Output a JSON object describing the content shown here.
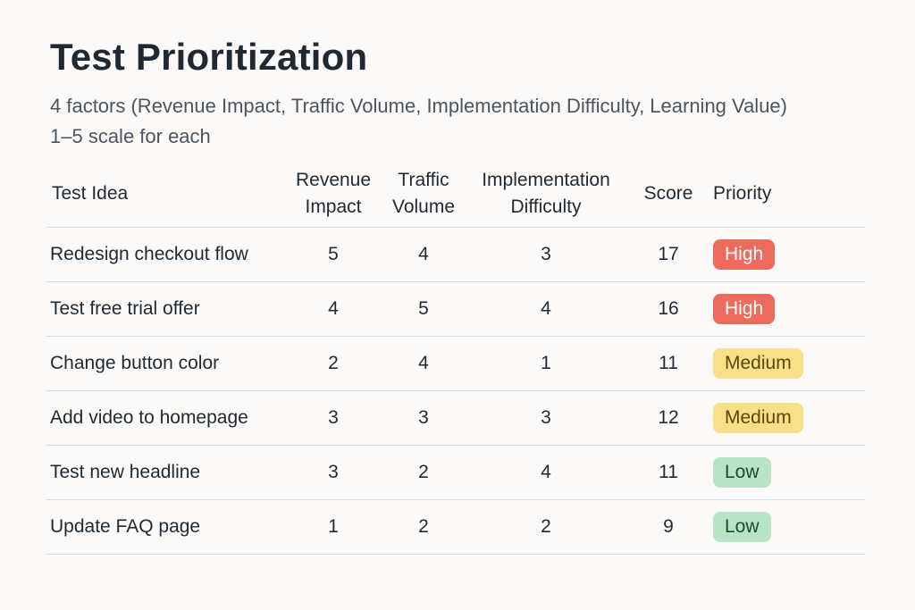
{
  "page": {
    "title": "Test Prioritization",
    "subtitle_line1": "4 factors (Revenue Impact, Traffic Volume, Implementation Difficulty, Learning Value)",
    "subtitle_line2": "1–5 scale for each"
  },
  "table": {
    "headers": {
      "test_idea": "Test Idea",
      "revenue_impact": [
        "Revenue",
        "Impact"
      ],
      "traffic_volume": [
        "Traffic",
        "Volume"
      ],
      "implementation_difficulty": [
        "Implementation",
        "Difficulty"
      ],
      "score": "Score",
      "priority": "Priority"
    },
    "rows": [
      {
        "idea": "Redesign checkout flow",
        "revenue": "5",
        "traffic": "4",
        "difficulty": "3",
        "score": "17",
        "priority": "High"
      },
      {
        "idea": "Test free trial offer",
        "revenue": "4",
        "traffic": "5",
        "difficulty": "4",
        "score": "16",
        "priority": "High"
      },
      {
        "idea": "Change button color",
        "revenue": "2",
        "traffic": "4",
        "difficulty": "1",
        "score": "11",
        "priority": "Medium"
      },
      {
        "idea": "Add video to homepage",
        "revenue": "3",
        "traffic": "3",
        "difficulty": "3",
        "score": "12",
        "priority": "Medium"
      },
      {
        "idea": "Test new headline",
        "revenue": "3",
        "traffic": "2",
        "difficulty": "4",
        "score": "11",
        "priority": "Low"
      },
      {
        "idea": "Update FAQ page",
        "revenue": "1",
        "traffic": "2",
        "difficulty": "2",
        "score": "9",
        "priority": "Low"
      }
    ]
  },
  "colors": {
    "high_badge": "#ec6b5d",
    "medium_badge": "#f9df87",
    "low_badge": "#b8e3c7",
    "background": "#fbfaf8"
  }
}
